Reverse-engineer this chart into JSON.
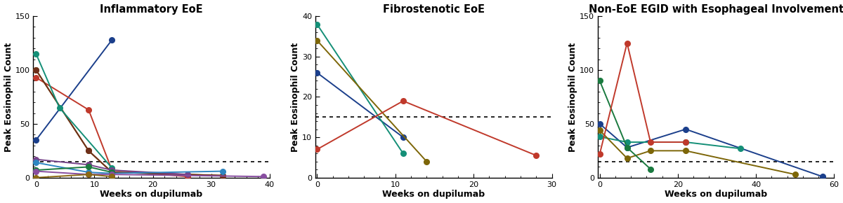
{
  "panel1_title": "Inflammatory EoE",
  "panel2_title": "Fibrostenotic EoE",
  "panel3_title": "Non-EoE EGID with Esophageal Involvement",
  "xlabel": "Weeks on dupilumab",
  "ylabel": "Peak Eosinophil Count",
  "panel1_xlim": [
    -0.5,
    40
  ],
  "panel1_ylim": [
    0,
    150
  ],
  "panel1_xticks": [
    0,
    10,
    20,
    30,
    40
  ],
  "panel1_yticks": [
    0,
    50,
    100,
    150
  ],
  "panel1_threshold": 15,
  "panel2_xlim": [
    -0.2,
    30
  ],
  "panel2_ylim": [
    0,
    40
  ],
  "panel2_xticks": [
    0,
    10,
    20,
    30
  ],
  "panel2_yticks": [
    0,
    10,
    20,
    30,
    40
  ],
  "panel2_threshold": 15,
  "panel3_xlim": [
    -0.5,
    60
  ],
  "panel3_ylim": [
    0,
    150
  ],
  "panel3_xticks": [
    0,
    20,
    40,
    60
  ],
  "panel3_yticks": [
    0,
    50,
    100,
    150
  ],
  "panel3_threshold": 15,
  "panel1_series": [
    {
      "x": [
        0,
        13
      ],
      "y": [
        35,
        128
      ],
      "color": "#1B3F8B"
    },
    {
      "x": [
        0,
        9,
        13,
        26
      ],
      "y": [
        93,
        63,
        7,
        1
      ],
      "color": "#C0392B"
    },
    {
      "x": [
        0,
        9,
        13,
        32
      ],
      "y": [
        100,
        25,
        5,
        2
      ],
      "color": "#7D6608"
    },
    {
      "x": [
        0,
        9,
        13,
        32
      ],
      "y": [
        100,
        25,
        5,
        2
      ],
      "color": "#6E2F1A"
    },
    {
      "x": [
        0,
        4,
        13
      ],
      "y": [
        115,
        65,
        9
      ],
      "color": "#148F77"
    },
    {
      "x": [
        0,
        9,
        13,
        26
      ],
      "y": [
        17,
        12,
        7,
        3
      ],
      "color": "#76448A"
    },
    {
      "x": [
        0,
        9,
        13,
        32
      ],
      "y": [
        14,
        5,
        4,
        6
      ],
      "color": "#2E86C1"
    },
    {
      "x": [
        0,
        9,
        13
      ],
      "y": [
        7,
        10,
        5
      ],
      "color": "#1A7A3F"
    },
    {
      "x": [
        0,
        9,
        13,
        39
      ],
      "y": [
        6,
        3,
        3,
        1
      ],
      "color": "#884EA0"
    },
    {
      "x": [
        0,
        9,
        13
      ],
      "y": [
        0,
        3,
        1
      ],
      "color": "#8B6914"
    }
  ],
  "panel2_series": [
    {
      "x": [
        0,
        11
      ],
      "y": [
        26,
        10
      ],
      "color": "#1B3F8B"
    },
    {
      "x": [
        0,
        11
      ],
      "y": [
        38,
        6
      ],
      "color": "#148F77"
    },
    {
      "x": [
        0,
        14
      ],
      "y": [
        34,
        4
      ],
      "color": "#7D6608"
    },
    {
      "x": [
        0,
        11,
        28
      ],
      "y": [
        7,
        19,
        5.5
      ],
      "color": "#C0392B"
    }
  ],
  "panel3_series": [
    {
      "x": [
        0,
        7,
        22,
        57
      ],
      "y": [
        50,
        28,
        45,
        1
      ],
      "color": "#1B3F8B"
    },
    {
      "x": [
        0,
        7,
        22,
        36
      ],
      "y": [
        38,
        33,
        33,
        27
      ],
      "color": "#148F77"
    },
    {
      "x": [
        0,
        7,
        13,
        22,
        50
      ],
      "y": [
        44,
        18,
        25,
        25,
        3
      ],
      "color": "#7D6608"
    },
    {
      "x": [
        0,
        7,
        13
      ],
      "y": [
        90,
        28,
        8
      ],
      "color": "#1A7A3F"
    },
    {
      "x": [
        0,
        7,
        13,
        22
      ],
      "y": [
        22,
        125,
        33,
        33
      ],
      "color": "#C0392B"
    }
  ],
  "background_color": "#ffffff",
  "title_fontsize": 10.5,
  "axis_label_fontsize": 9,
  "tick_fontsize": 8,
  "marker_size": 5.5,
  "line_width": 1.4,
  "threshold_lw": 1.2
}
